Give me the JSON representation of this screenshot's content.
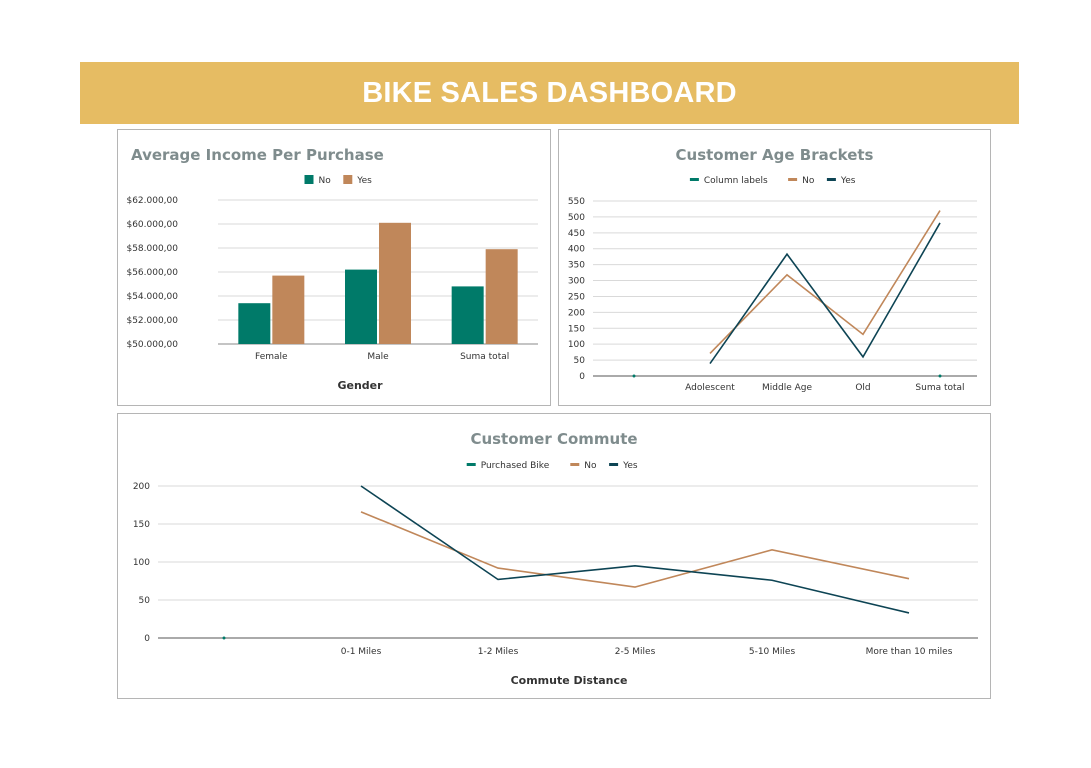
{
  "dashboard": {
    "title": "BIKE SALES DASHBOARD",
    "banner_color": "#e6bc63"
  },
  "colors": {
    "no": "#c0875a",
    "yes_bar": "#007a69",
    "yes_line": "#0d4454",
    "teal": "#007a69"
  },
  "chart_data": [
    {
      "id": "income",
      "type": "bar",
      "title": "Average Income Per Purchase",
      "xlabel": "Gender",
      "ylabel": "",
      "categories": [
        "Female",
        "Male",
        "Suma total"
      ],
      "series": [
        {
          "name": "No",
          "color": "#007a69",
          "values": [
            53400,
            56200,
            54800
          ]
        },
        {
          "name": "Yes",
          "color": "#c0875a",
          "values": [
            55700,
            60100,
            57900
          ]
        }
      ],
      "ylim": [
        50000,
        62000
      ],
      "yticks": [
        50000,
        52000,
        54000,
        56000,
        58000,
        60000,
        62000
      ],
      "ytick_labels": [
        "$50.000,00",
        "$52.000,00",
        "$54.000,00",
        "$56.000,00",
        "$58.000,00",
        "$60.000,00",
        "$62.000,00"
      ],
      "legend": [
        "No",
        "Yes"
      ],
      "legend_position": "top-center",
      "grid": true
    },
    {
      "id": "age",
      "type": "line",
      "title": "Customer Age Brackets",
      "xlabel": "",
      "categories": [
        "",
        "Adolescent",
        "Middle Age",
        "Old",
        "Suma total"
      ],
      "series": [
        {
          "name": "Column labels",
          "color": "#007a69",
          "values": [
            0,
            null,
            null,
            null,
            0
          ],
          "style": "marker"
        },
        {
          "name": "No",
          "color": "#c0875a",
          "values": [
            null,
            71,
            318,
            131,
            520
          ]
        },
        {
          "name": "Yes",
          "color": "#0d4454",
          "values": [
            null,
            39,
            383,
            60,
            481
          ]
        }
      ],
      "ylim": [
        0,
        550
      ],
      "yticks": [
        0,
        50,
        100,
        150,
        200,
        250,
        300,
        350,
        400,
        450,
        500,
        550
      ],
      "legend": [
        "Column labels",
        "No",
        "Yes"
      ],
      "legend_position": "top-center",
      "grid": true
    },
    {
      "id": "commute",
      "type": "line",
      "title": "Customer Commute",
      "xlabel": "Commute Distance",
      "categories": [
        "",
        "0-1 Miles",
        "1-2 Miles",
        "2-5 Miles",
        "5-10 Miles",
        "More than 10 miles"
      ],
      "series": [
        {
          "name": "Purchased Bike",
          "color": "#007a69",
          "values": [
            0,
            null,
            null,
            null,
            null,
            null
          ],
          "style": "marker"
        },
        {
          "name": "No",
          "color": "#c0875a",
          "values": [
            null,
            166,
            92,
            67,
            116,
            78
          ]
        },
        {
          "name": "Yes",
          "color": "#0d4454",
          "values": [
            null,
            200,
            77,
            95,
            76,
            33
          ]
        }
      ],
      "ylim": [
        0,
        200
      ],
      "yticks": [
        0,
        50,
        100,
        150,
        200
      ],
      "legend": [
        "Purchased Bike",
        "No",
        "Yes"
      ],
      "legend_position": "top-center",
      "grid": true
    }
  ]
}
